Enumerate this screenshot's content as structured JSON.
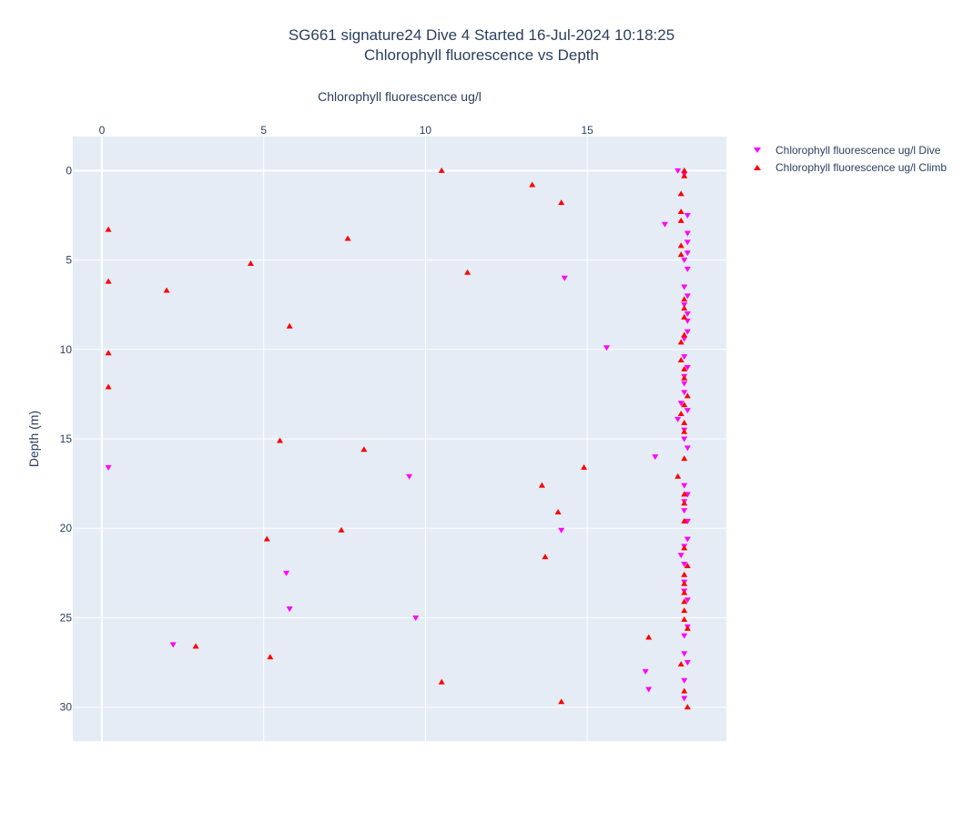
{
  "chart_data": {
    "type": "scatter",
    "title": "SG661 signature24 Dive 4 Started 16-Jul-2024 10:18:25",
    "subtitle": "Chlorophyll fluorescence vs Depth",
    "xlabel": "Chlorophyll fluorescence ug/l",
    "ylabel": "Depth (m)",
    "xlim": [
      -0.9,
      19.3
    ],
    "ylim": [
      31.9,
      -1.9
    ],
    "x_ticks": [
      0,
      5,
      10,
      15
    ],
    "y_ticks": [
      0,
      5,
      10,
      15,
      20,
      25,
      30
    ],
    "x_axis_position": "top",
    "y_reversed": true,
    "grid": true,
    "legend_position": "top-right",
    "series": [
      {
        "name": "Chlorophyll fluorescence ug/l Dive",
        "color": "#ff00ff",
        "marker": "triangle-down",
        "points": [
          [
            17.8,
            0.0
          ],
          [
            18.0,
            0.2
          ],
          [
            18.1,
            2.5
          ],
          [
            17.4,
            3.0
          ],
          [
            18.1,
            3.5
          ],
          [
            18.1,
            4.0
          ],
          [
            18.1,
            4.6
          ],
          [
            18.0,
            5.0
          ],
          [
            18.1,
            5.5
          ],
          [
            14.3,
            6.0
          ],
          [
            18.0,
            6.5
          ],
          [
            18.1,
            7.0
          ],
          [
            18.0,
            7.5
          ],
          [
            18.1,
            8.0
          ],
          [
            18.1,
            8.4
          ],
          [
            18.1,
            9.0
          ],
          [
            18.0,
            9.4
          ],
          [
            15.6,
            9.9
          ],
          [
            18.0,
            10.4
          ],
          [
            18.1,
            11.0
          ],
          [
            18.0,
            11.5
          ],
          [
            18.0,
            11.9
          ],
          [
            18.0,
            12.4
          ],
          [
            17.9,
            13.0
          ],
          [
            18.1,
            13.4
          ],
          [
            17.8,
            13.9
          ],
          [
            18.0,
            14.5
          ],
          [
            18.0,
            15.0
          ],
          [
            18.1,
            15.5
          ],
          [
            17.1,
            16.0
          ],
          [
            0.2,
            16.6
          ],
          [
            9.5,
            17.1
          ],
          [
            18.0,
            17.6
          ],
          [
            18.1,
            18.1
          ],
          [
            18.0,
            18.5
          ],
          [
            18.0,
            19.0
          ],
          [
            18.1,
            19.6
          ],
          [
            14.2,
            20.1
          ],
          [
            18.1,
            20.6
          ],
          [
            18.0,
            21.0
          ],
          [
            17.9,
            21.5
          ],
          [
            18.0,
            22.0
          ],
          [
            5.7,
            22.5
          ],
          [
            18.0,
            23.0
          ],
          [
            18.0,
            23.5
          ],
          [
            18.1,
            24.0
          ],
          [
            5.8,
            24.5
          ],
          [
            9.7,
            25.0
          ],
          [
            18.1,
            25.5
          ],
          [
            18.0,
            26.0
          ],
          [
            2.2,
            26.5
          ],
          [
            18.0,
            27.0
          ],
          [
            18.1,
            27.5
          ],
          [
            16.8,
            28.0
          ],
          [
            18.0,
            28.5
          ],
          [
            16.9,
            29.0
          ],
          [
            18.0,
            29.5
          ]
        ]
      },
      {
        "name": "Chlorophyll fluorescence ug/l Climb",
        "color": "#ff0000",
        "marker": "triangle-up",
        "points": [
          [
            10.5,
            0.0
          ],
          [
            18.0,
            0.0
          ],
          [
            18.0,
            0.3
          ],
          [
            13.3,
            0.8
          ],
          [
            17.9,
            1.3
          ],
          [
            14.2,
            1.8
          ],
          [
            17.9,
            2.3
          ],
          [
            17.9,
            2.8
          ],
          [
            0.2,
            3.3
          ],
          [
            7.6,
            3.8
          ],
          [
            17.9,
            4.2
          ],
          [
            17.9,
            4.7
          ],
          [
            4.6,
            5.2
          ],
          [
            11.3,
            5.7
          ],
          [
            0.2,
            6.2
          ],
          [
            2.0,
            6.7
          ],
          [
            18.0,
            7.2
          ],
          [
            18.0,
            7.7
          ],
          [
            18.0,
            8.2
          ],
          [
            5.8,
            8.7
          ],
          [
            18.0,
            9.2
          ],
          [
            17.9,
            9.6
          ],
          [
            0.2,
            10.2
          ],
          [
            17.9,
            10.6
          ],
          [
            18.0,
            11.1
          ],
          [
            18.0,
            11.6
          ],
          [
            0.2,
            12.1
          ],
          [
            18.1,
            12.6
          ],
          [
            18.0,
            13.1
          ],
          [
            17.9,
            13.6
          ],
          [
            18.0,
            14.1
          ],
          [
            18.0,
            14.6
          ],
          [
            5.5,
            15.1
          ],
          [
            8.1,
            15.6
          ],
          [
            18.0,
            16.1
          ],
          [
            14.9,
            16.6
          ],
          [
            17.8,
            17.1
          ],
          [
            13.6,
            17.6
          ],
          [
            18.0,
            18.1
          ],
          [
            18.0,
            18.6
          ],
          [
            14.1,
            19.1
          ],
          [
            18.0,
            19.6
          ],
          [
            7.4,
            20.1
          ],
          [
            5.1,
            20.6
          ],
          [
            18.0,
            21.1
          ],
          [
            13.7,
            21.6
          ],
          [
            18.1,
            22.1
          ],
          [
            18.0,
            22.6
          ],
          [
            18.0,
            23.1
          ],
          [
            18.0,
            23.6
          ],
          [
            18.0,
            24.1
          ],
          [
            18.0,
            24.6
          ],
          [
            18.0,
            25.1
          ],
          [
            18.1,
            25.6
          ],
          [
            16.9,
            26.1
          ],
          [
            2.9,
            26.6
          ],
          [
            5.2,
            27.2
          ],
          [
            17.9,
            27.6
          ],
          [
            10.5,
            28.6
          ],
          [
            18.0,
            29.1
          ],
          [
            14.2,
            29.7
          ],
          [
            18.1,
            30.0
          ]
        ]
      }
    ]
  }
}
